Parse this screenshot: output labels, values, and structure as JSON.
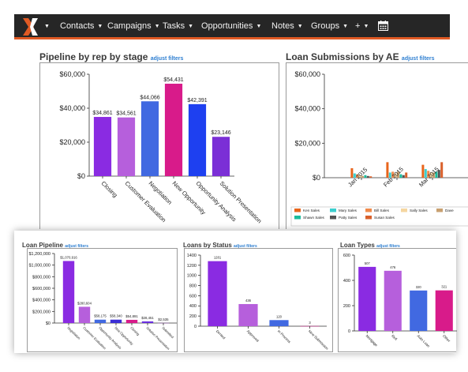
{
  "nav": {
    "items": [
      {
        "label": "Contacts"
      },
      {
        "label": "Campaigns"
      },
      {
        "label": "Tasks"
      },
      {
        "label": "Opportunities"
      },
      {
        "label": "Notes"
      },
      {
        "label": "Groups"
      },
      {
        "label": "+"
      }
    ],
    "icons": [
      "logo-x-icon",
      "calendar-icon"
    ],
    "accent_color": "#e05a24",
    "bar_color": "#262626"
  },
  "adjust_filters_label": "adjust filters",
  "chart_data": [
    {
      "type": "bar",
      "title": "Pipeline by rep by stage",
      "categories": [
        "Closing",
        "Customer Evaluation",
        "Negotiation",
        "New Opportunity",
        "Opportunity Analysis",
        "Solution Presentation"
      ],
      "values": [
        34861,
        34561,
        44066,
        54431,
        42391,
        23146
      ],
      "value_labels": [
        "$34,861",
        "$34,561",
        "$44,066",
        "$54,431",
        "$42,391",
        "$23,146"
      ],
      "colors": [
        "#8a2be2",
        "#b65fdc",
        "#4169e1",
        "#d81b8a",
        "#1e40f0",
        "#7b2fd6"
      ],
      "yticks": [
        "$0",
        "$20,000",
        "$40,000",
        "$60,000"
      ],
      "ylim": [
        0,
        60000
      ]
    },
    {
      "type": "bar",
      "title": "Loan Submissions by AE",
      "categories": [
        "Jan 2015",
        "Feb 2015",
        "Mar 2015"
      ],
      "yticks": [
        "$0",
        "$20,000",
        "$40,000",
        "$60,000"
      ],
      "ylim": [
        0,
        60000
      ],
      "legend_position": "bottom",
      "series": [
        {
          "name": "Ken Sales",
          "color": "#e8651c",
          "values": [
            5500,
            9000,
            7500
          ]
        },
        {
          "name": "Mary Sales",
          "color": "#3ccfcf",
          "values": [
            2500,
            3000,
            5000
          ]
        },
        {
          "name": "Bill Sales",
          "color": "#f08a4b",
          "values": [
            2000,
            3500,
            4000
          ]
        },
        {
          "name": "Sally Sales",
          "color": "#f5d6a0",
          "values": [
            1500,
            2500,
            3000
          ]
        },
        {
          "name": "Dave",
          "color": "#c8a070",
          "values": [
            1000,
            3500,
            3000
          ]
        },
        {
          "name": "Shawn Sales",
          "color": "#1abc9c",
          "values": [
            1500,
            2000,
            3500
          ]
        },
        {
          "name": "Patty Sales",
          "color": "#555555",
          "values": [
            1000,
            1500,
            4500
          ]
        },
        {
          "name": "Susan Sales",
          "color": "#d9602b",
          "values": [
            800,
            3000,
            9000
          ]
        }
      ]
    },
    {
      "type": "bar",
      "title": "Loan Pipeline",
      "categories": [
        "Negotiation",
        "Customer Evaluation",
        "Opportunity Analysis",
        "New Opportunity",
        "Closing",
        "Solution Presentation",
        "Submitted"
      ],
      "values": [
        1070916,
        280604,
        58175,
        58340,
        54891,
        28451,
        2535
      ],
      "value_labels": [
        "$1,070,916",
        "$280,604",
        "$58,175",
        "$58,340",
        "$54,891",
        "$28,451",
        "$2,535"
      ],
      "colors": [
        "#8a2be2",
        "#b65fdc",
        "#4169e1",
        "#3b2fd6",
        "#d81b8a",
        "#6a2fe0",
        "#9b59b6"
      ],
      "yticks": [
        "$0",
        "$200,000",
        "$400,000",
        "$600,000",
        "$800,000",
        "$1,000,000",
        "$1,200,000"
      ],
      "ylim": [
        0,
        1200000
      ]
    },
    {
      "type": "bar",
      "title": "Loans by Status",
      "categories": [
        "Denied",
        "Approved",
        "In Process",
        "New Submission"
      ],
      "values": [
        1281,
        436,
        120,
        3
      ],
      "value_labels": [
        "1281",
        "436",
        "120",
        "3"
      ],
      "colors": [
        "#8a2be2",
        "#b65fdc",
        "#4169e1",
        "#d81b8a"
      ],
      "yticks": [
        "0",
        "200",
        "400",
        "600",
        "800",
        "1000",
        "1200",
        "1400"
      ],
      "ylim": [
        0,
        1400
      ]
    },
    {
      "type": "bar",
      "title": "Loan Types",
      "categories": [
        "Mortgage",
        "Refi",
        "Auto Loan",
        "Other"
      ],
      "values": [
        507,
        476,
        320,
        321
      ],
      "value_labels": [
        "507",
        "476",
        "320",
        "321"
      ],
      "colors": [
        "#8a2be2",
        "#b65fdc",
        "#4169e1",
        "#d81b8a"
      ],
      "yticks": [
        "0",
        "200",
        "400",
        "600"
      ],
      "ylim": [
        0,
        600
      ]
    }
  ]
}
